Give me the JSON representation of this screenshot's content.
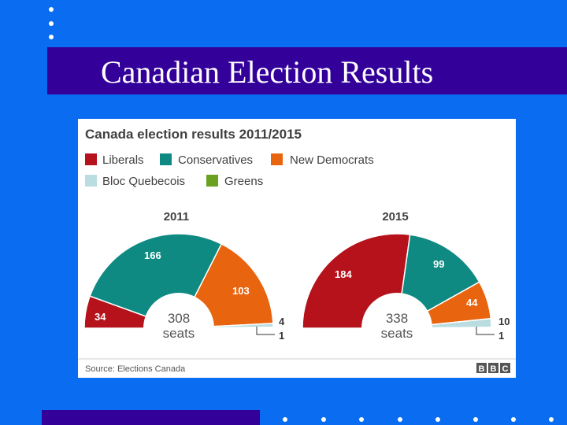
{
  "slide": {
    "title": "Canadian Election Results",
    "colors": {
      "background": "#0a6cf0",
      "band": "#33009a",
      "dots": "#ffffff"
    }
  },
  "chart_data": {
    "type": "pie",
    "variant": "semicircle parliament",
    "title": "Canada election results 2011/2015",
    "source": "Source: Elections Canada",
    "logo": "BBC",
    "seats_unit": "seats",
    "legend": [
      {
        "name": "Liberals",
        "color": "#b5121b"
      },
      {
        "name": "Conservatives",
        "color": "#0f8a82"
      },
      {
        "name": "New Democrats",
        "color": "#e8640f"
      },
      {
        "name": "Bloc Quebecois",
        "color": "#b9dde0"
      },
      {
        "name": "Greens",
        "color": "#6aa121"
      }
    ],
    "charts": [
      {
        "label": "2011",
        "total": 308,
        "slices": [
          {
            "party": "Liberals",
            "seats": 34
          },
          {
            "party": "Conservatives",
            "seats": 166
          },
          {
            "party": "New Democrats",
            "seats": 103
          },
          {
            "party": "Bloc Quebecois",
            "seats": 4
          },
          {
            "party": "Greens",
            "seats": 1
          }
        ]
      },
      {
        "label": "2015",
        "total": 338,
        "slices": [
          {
            "party": "Liberals",
            "seats": 184
          },
          {
            "party": "Conservatives",
            "seats": 99
          },
          {
            "party": "New Democrats",
            "seats": 44
          },
          {
            "party": "Bloc Quebecois",
            "seats": 10
          },
          {
            "party": "Greens",
            "seats": 1
          }
        ]
      }
    ]
  }
}
